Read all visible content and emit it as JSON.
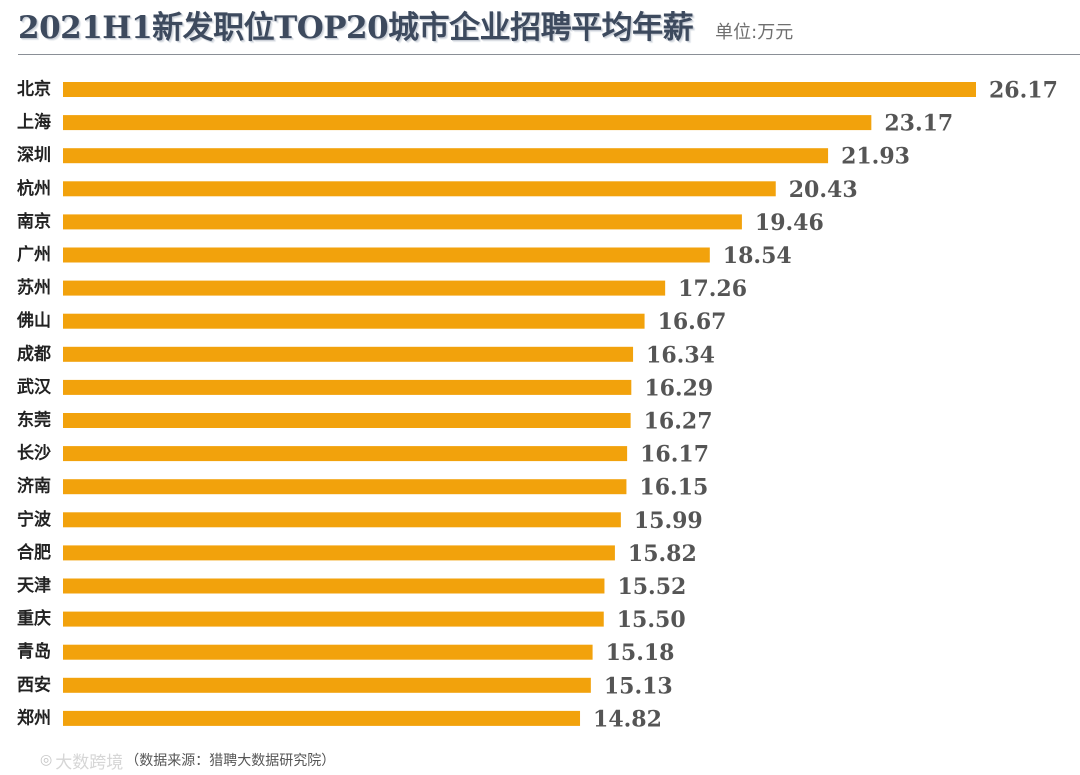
{
  "header": {
    "title": "2021H1新发职位TOP20城市企业招聘平均年薪",
    "unit": "单位:万元"
  },
  "footer": {
    "watermark_icon": "weibo-icon",
    "watermark_text": "大数跨境",
    "source": "（数据来源：猎聘大数据研究院）"
  },
  "colors": {
    "bar": "#F2A20C",
    "value_label": "#555555",
    "category_label": "#222222",
    "title": "#3d4a5e"
  },
  "chart_data": {
    "type": "bar",
    "orientation": "horizontal",
    "title": "2021H1新发职位TOP20城市企业招聘平均年薪",
    "unit": "万元",
    "xlabel": "",
    "ylabel": "",
    "xlim": [
      0,
      26.17
    ],
    "grid": false,
    "legend": "none",
    "categories": [
      "北京",
      "上海",
      "深圳",
      "杭州",
      "南京",
      "广州",
      "苏州",
      "佛山",
      "成都",
      "武汉",
      "东莞",
      "长沙",
      "济南",
      "宁波",
      "合肥",
      "天津",
      "重庆",
      "青岛",
      "西安",
      "郑州"
    ],
    "values": [
      26.17,
      23.17,
      21.93,
      20.43,
      19.46,
      18.54,
      17.26,
      16.67,
      16.34,
      16.29,
      16.27,
      16.17,
      16.15,
      15.99,
      15.82,
      15.52,
      15.5,
      15.18,
      15.13,
      14.82
    ],
    "value_labels": [
      "26.17",
      "23.17",
      "21.93",
      "20.43",
      "19.46",
      "18.54",
      "17.26",
      "16.67",
      "16.34",
      "16.29",
      "16.27",
      "16.17",
      "16.15",
      "15.99",
      "15.82",
      "15.52",
      "15.50",
      "15.18",
      "15.13",
      "14.82"
    ]
  }
}
